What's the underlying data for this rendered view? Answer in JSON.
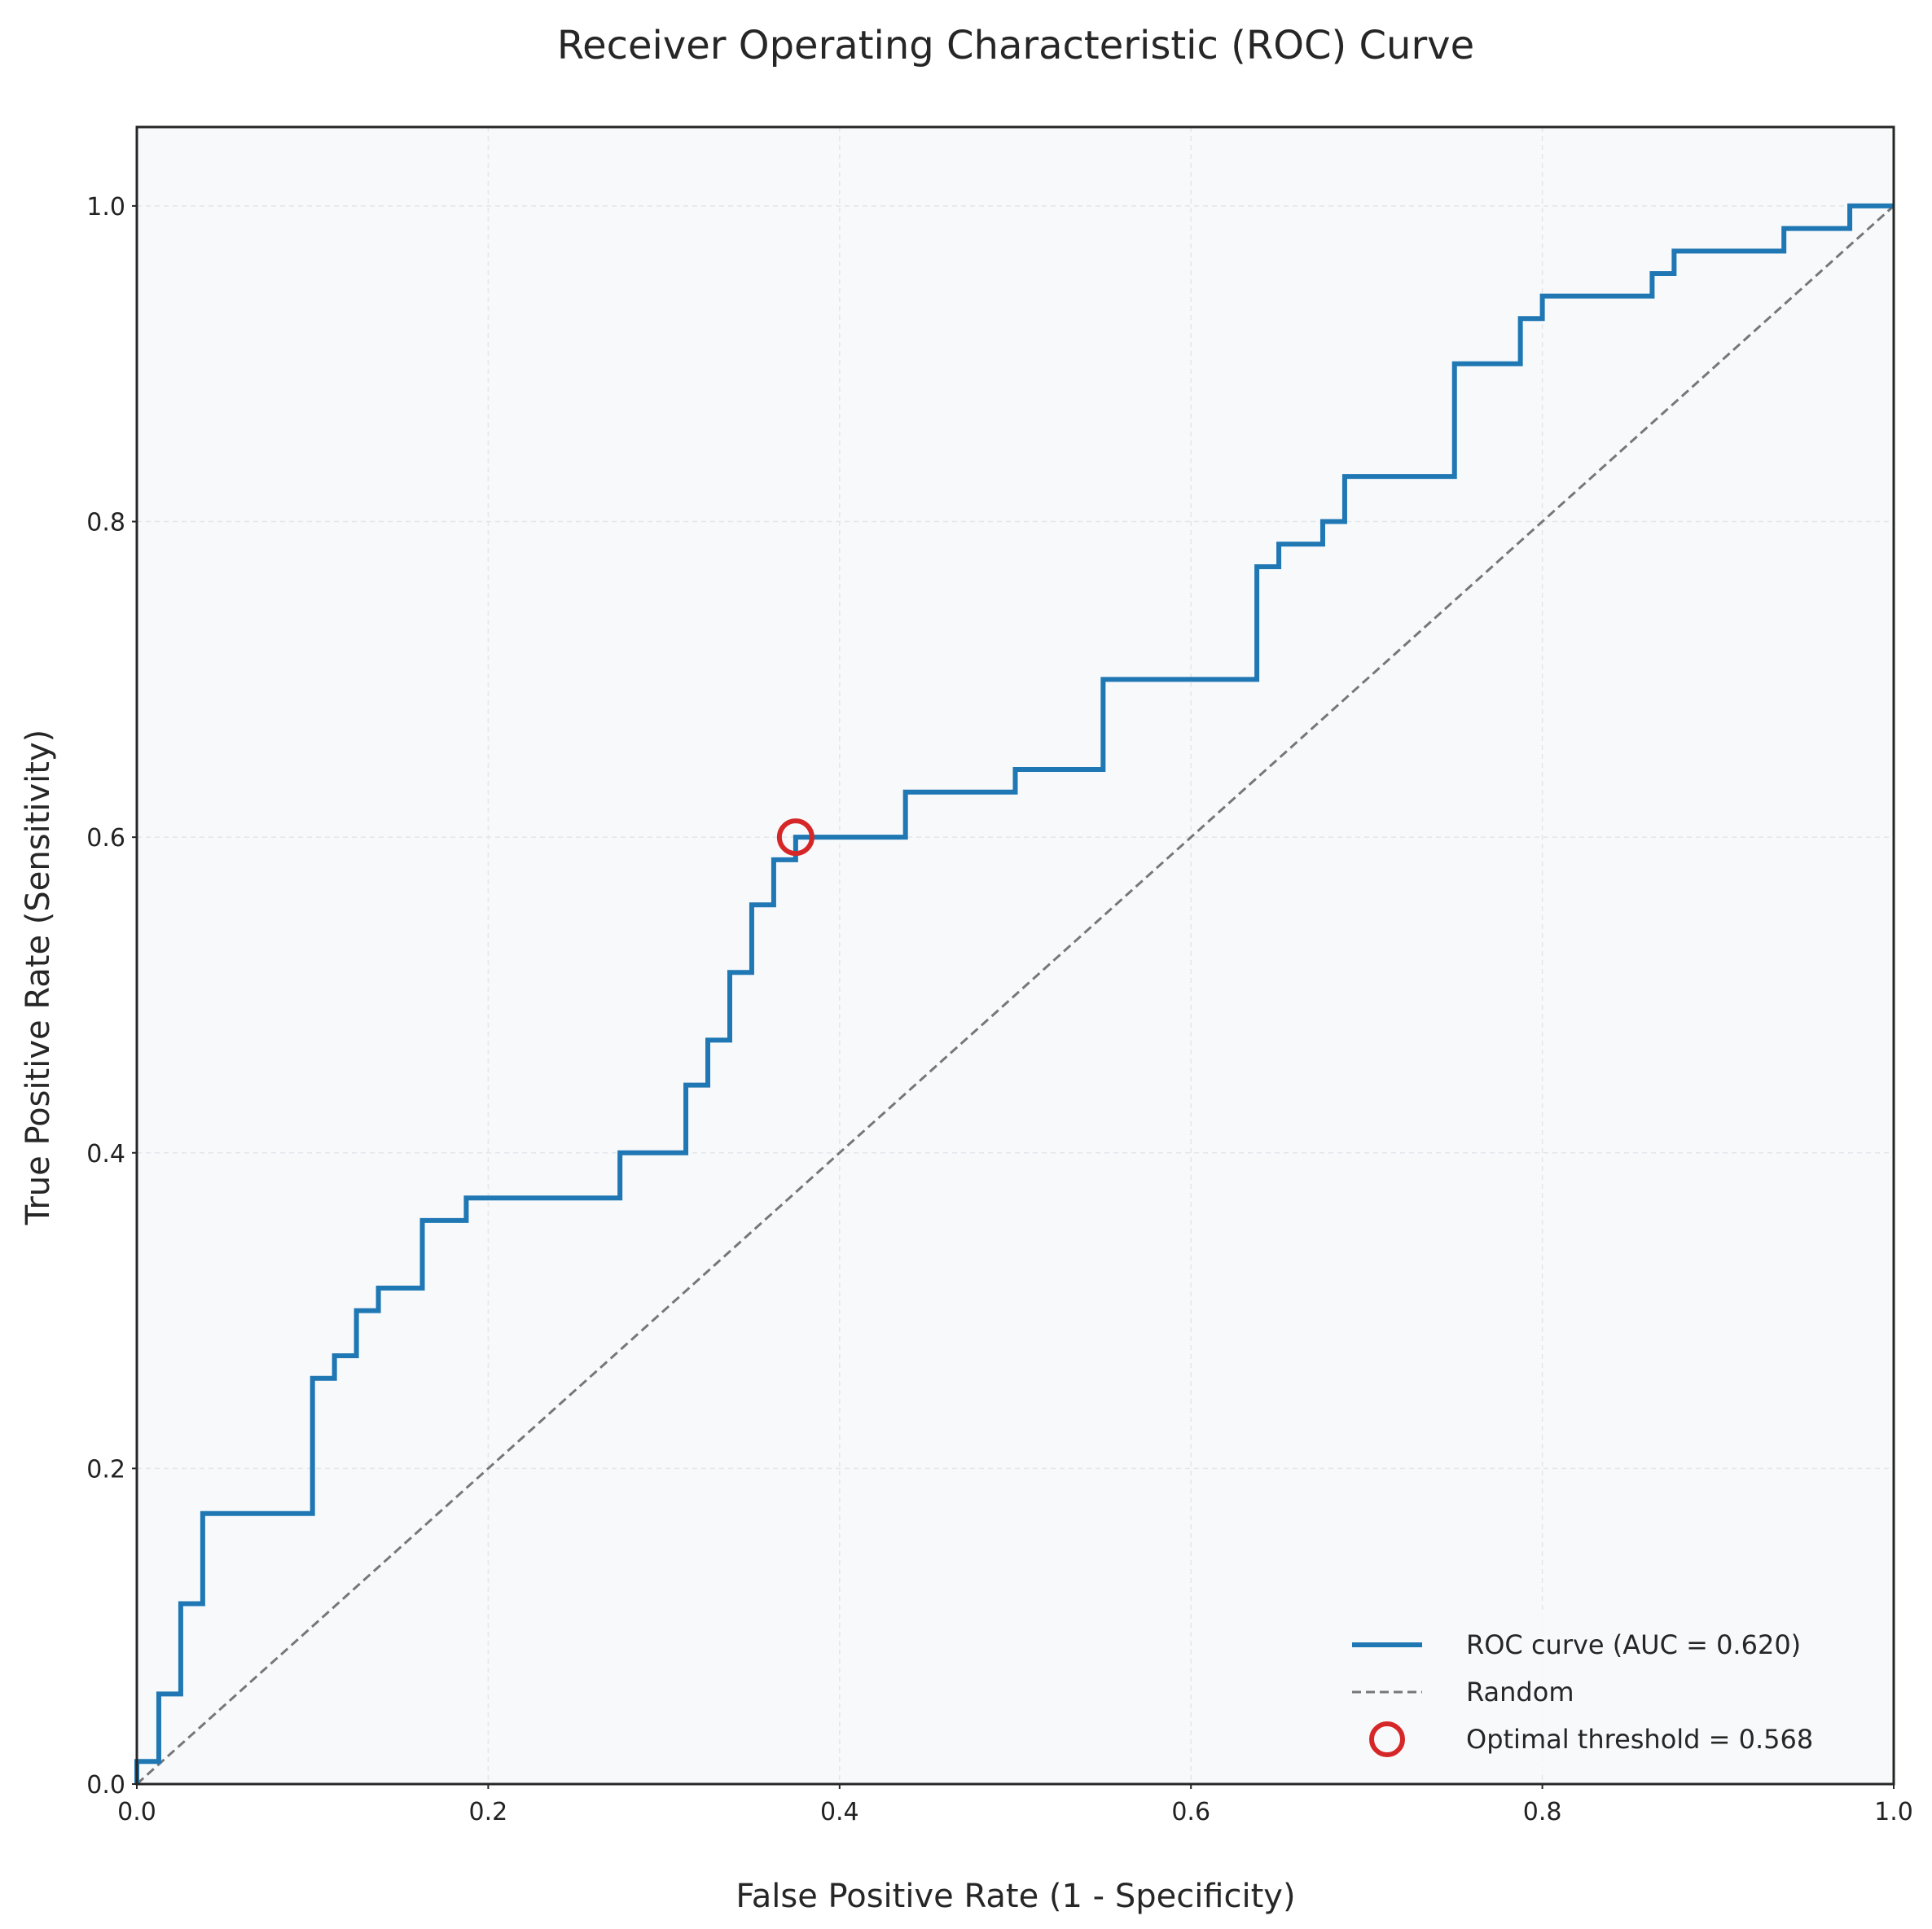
{
  "chart_data": {
    "type": "line",
    "title": "Receiver Operating Characteristic (ROC) Curve",
    "xlabel": "False Positive Rate (1 - Specificity)",
    "ylabel": "True Positive Rate (Sensitivity)",
    "xlim": [
      0,
      1.0
    ],
    "ylim": [
      0,
      1.05
    ],
    "xticks": [
      "0.0",
      "0.2",
      "0.4",
      "0.6",
      "0.8",
      "1.0"
    ],
    "yticks": [
      "0.0",
      "0.2",
      "0.4",
      "0.6",
      "0.8",
      "1.0"
    ],
    "grid": true,
    "legend_position": "lower-right",
    "series": [
      {
        "name": "ROC curve (AUC = 0.620)",
        "style": "step",
        "color": "#1f77b4",
        "x": [
          0.0,
          0.0,
          0.0125,
          0.0125,
          0.025,
          0.025,
          0.0375,
          0.0375,
          0.1,
          0.1,
          0.1125,
          0.1125,
          0.125,
          0.125,
          0.1375,
          0.1375,
          0.1625,
          0.1625,
          0.1875,
          0.1875,
          0.275,
          0.275,
          0.3125,
          0.3125,
          0.325,
          0.325,
          0.3375,
          0.3375,
          0.35,
          0.35,
          0.3625,
          0.3625,
          0.375,
          0.375,
          0.4375,
          0.4375,
          0.5,
          0.5,
          0.55,
          0.55,
          0.6375,
          0.6375,
          0.65,
          0.65,
          0.675,
          0.675,
          0.6875,
          0.6875,
          0.75,
          0.75,
          0.7875,
          0.7875,
          0.8,
          0.8,
          0.8625,
          0.8625,
          0.875,
          0.875,
          0.9375,
          0.9375,
          0.975,
          0.975,
          1.0
        ],
        "y": [
          0.0,
          0.0143,
          0.0143,
          0.0571,
          0.0571,
          0.1143,
          0.1143,
          0.1714,
          0.1714,
          0.2571,
          0.2571,
          0.2714,
          0.2714,
          0.3,
          0.3,
          0.3143,
          0.3143,
          0.3571,
          0.3571,
          0.3714,
          0.3714,
          0.4,
          0.4,
          0.4429,
          0.4429,
          0.4714,
          0.4714,
          0.5143,
          0.5143,
          0.5571,
          0.5571,
          0.5857,
          0.5857,
          0.6,
          0.6,
          0.6286,
          0.6286,
          0.6429,
          0.6429,
          0.7,
          0.7,
          0.7714,
          0.7714,
          0.7857,
          0.7857,
          0.8,
          0.8,
          0.8286,
          0.8286,
          0.9,
          0.9,
          0.9286,
          0.9286,
          0.9429,
          0.9429,
          0.9571,
          0.9571,
          0.9714,
          0.9714,
          0.9857,
          0.9857,
          1.0,
          1.0
        ]
      },
      {
        "name": "Random",
        "style": "dashed",
        "color": "#777777",
        "x": [
          0,
          1
        ],
        "y": [
          0,
          1
        ]
      }
    ],
    "markers": [
      {
        "name": "Optimal threshold = 0.568",
        "x": 0.375,
        "y": 0.6,
        "color": "#d62728",
        "shape": "open-circle"
      }
    ]
  },
  "style": {
    "plot_background": "#f7f9fb",
    "frame_color": "#262626",
    "grid_color": "#e3e6ea"
  }
}
